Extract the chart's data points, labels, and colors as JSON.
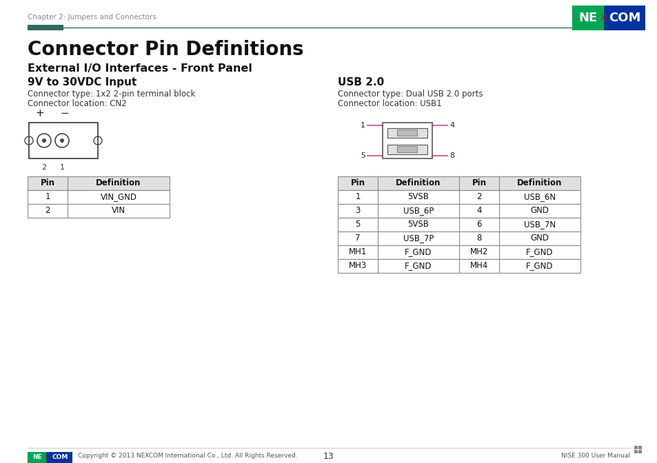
{
  "page_title": "Connector Pin Definitions",
  "chapter_text": "Chapter 2: Jumpers and Connectors",
  "section_title": "External I/O Interfaces - Front Panel",
  "header_line_color": "#1e5c5c",
  "header_block_color": "#2d6b5e",
  "bg_color": "#ffffff",
  "left_section": {
    "title": "9V to 30VDC Input",
    "type_text": "Connector type: 1x2 2-pin terminal block",
    "location_text": "Connector location: CN2",
    "table_headers": [
      "Pin",
      "Definition"
    ],
    "table_rows": [
      [
        "1",
        "VIN_GND"
      ],
      [
        "2",
        "VIN"
      ]
    ]
  },
  "right_section": {
    "title": "USB 2.0",
    "type_text": "Connector type: Dual USB 2.0 ports",
    "location_text": "Connector location: USB1",
    "table_headers": [
      "Pin",
      "Definition",
      "Pin",
      "Definition"
    ],
    "table_rows": [
      [
        "1",
        "5VSB",
        "2",
        "USB_6N"
      ],
      [
        "3",
        "USB_6P",
        "4",
        "GND"
      ],
      [
        "5",
        "5VSB",
        "6",
        "USB_7N"
      ],
      [
        "7",
        "USB_7P",
        "8",
        "GND"
      ],
      [
        "MH1",
        "F_GND",
        "MH2",
        "F_GND"
      ],
      [
        "MH3",
        "F_GND",
        "MH4",
        "F_GND"
      ]
    ]
  },
  "footer_text": "Copyright © 2013 NEXCOM International Co., Ltd. All Rights Reserved.",
  "page_number": "13",
  "manual_text": "NISE 300 User Manual",
  "nexcom_logo_colors": {
    "green": "#00a651",
    "blue": "#0033a0",
    "red": "#e8000d"
  },
  "table_border_color": "#888888",
  "title_font_size": 20,
  "section_font_size": 11.5,
  "subsection_font_size": 11,
  "body_font_size": 8.5,
  "footer_font_size": 6.5
}
